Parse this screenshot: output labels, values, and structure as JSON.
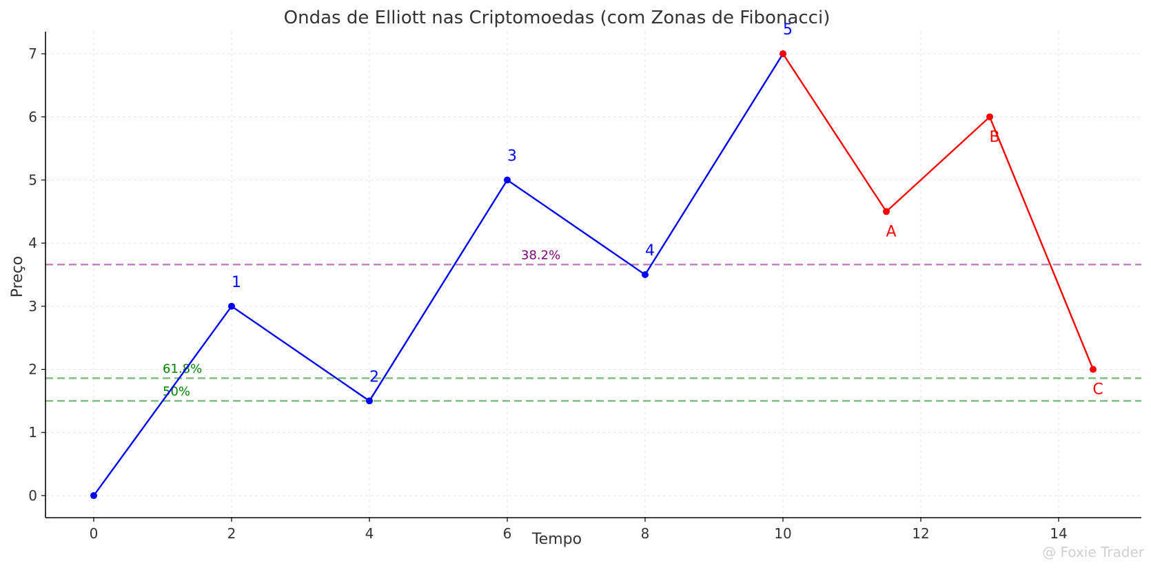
{
  "chart_data": {
    "type": "line",
    "title": "Ondas de Elliott nas Criptomoedas (com Zonas de Fibonacci)",
    "xlabel": "Tempo",
    "ylabel": "Preço",
    "xlim": [
      -0.7,
      15.2
    ],
    "ylim": [
      -0.35,
      7.35
    ],
    "xticks": [
      0,
      2,
      4,
      6,
      8,
      10,
      12,
      14
    ],
    "yticks": [
      0,
      1,
      2,
      3,
      4,
      5,
      6,
      7
    ],
    "grid": true,
    "series": [
      {
        "color": "#0000ff",
        "points": [
          {
            "x": 0,
            "y": 0,
            "label": ""
          },
          {
            "x": 2,
            "y": 3,
            "label": "1"
          },
          {
            "x": 4,
            "y": 1.5,
            "label": "2"
          },
          {
            "x": 6,
            "y": 5,
            "label": "3"
          },
          {
            "x": 8,
            "y": 3.5,
            "label": "4"
          },
          {
            "x": 10,
            "y": 7,
            "label": "5"
          }
        ]
      },
      {
        "color": "#ff0000",
        "points": [
          {
            "x": 10,
            "y": 7,
            "label": ""
          },
          {
            "x": 11.5,
            "y": 4.5,
            "label": "A"
          },
          {
            "x": 13,
            "y": 6,
            "label": "B"
          },
          {
            "x": 14.5,
            "y": 2,
            "label": "C"
          }
        ]
      }
    ],
    "fib_levels": [
      {
        "label": "38.2%",
        "y": 3.66,
        "color": "#bf7fbf",
        "text_color": "#800080",
        "label_x": 6.2
      },
      {
        "label": "61.8%",
        "y": 1.86,
        "color": "#7fbf7f",
        "text_color": "#008000",
        "label_x": 1
      },
      {
        "label": "50%",
        "y": 1.5,
        "color": "#7fbf7f",
        "text_color": "#008000",
        "label_x": 1
      }
    ]
  },
  "watermark": "@ Foxie Trader"
}
